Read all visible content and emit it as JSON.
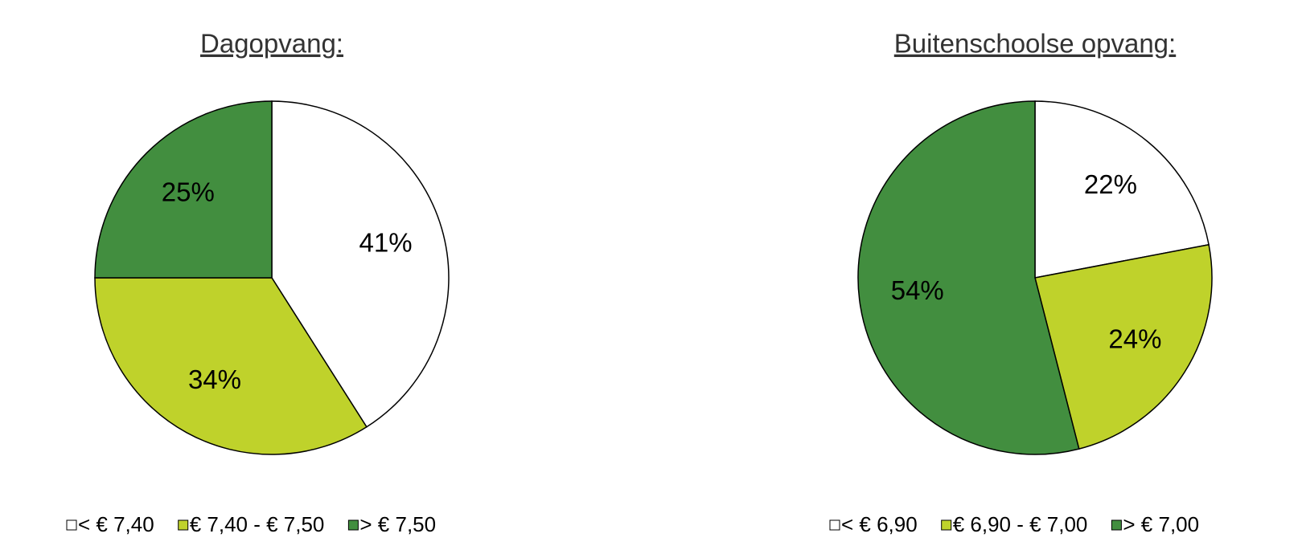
{
  "chart_data": [
    {
      "type": "pie",
      "title": "Dagopvang:",
      "categories": [
        "< € 7,40",
        "€ 7,40 - € 7,50",
        "> € 7,50"
      ],
      "values": [
        41,
        34,
        25
      ],
      "value_labels": [
        "41%",
        "34%",
        "25%"
      ],
      "colors": [
        "#ffffff",
        "#bfd22b",
        "#428e3f"
      ]
    },
    {
      "type": "pie",
      "title": "Buitenschoolse opvang:",
      "categories": [
        "< € 6,90",
        "€ 6,90 - € 7,00",
        "> € 7,00"
      ],
      "values": [
        22,
        24,
        54
      ],
      "value_labels": [
        "22%",
        "24%",
        "54%"
      ],
      "colors": [
        "#ffffff",
        "#bfd22b",
        "#428e3f"
      ]
    }
  ]
}
